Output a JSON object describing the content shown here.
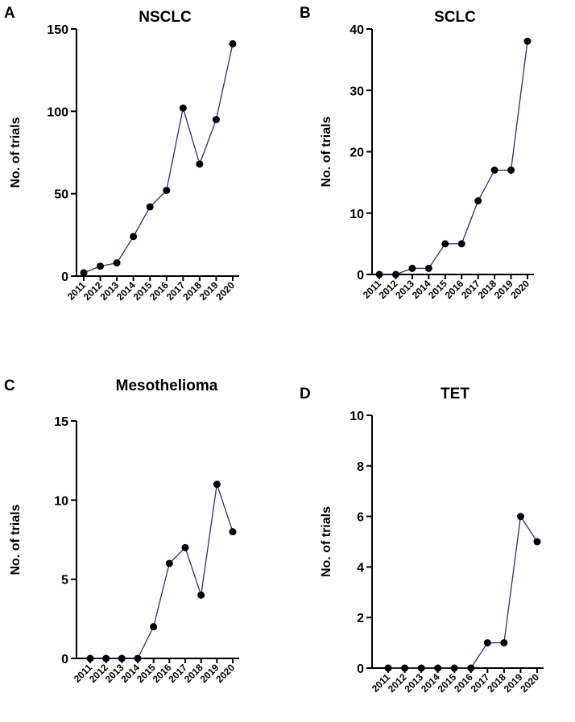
{
  "chart_data": [
    {
      "panel": "A",
      "type": "line",
      "title": "NSCLC",
      "ylabel": "No. of trials",
      "xlabel": "",
      "categories": [
        "2011",
        "2012",
        "2013",
        "2014",
        "2015",
        "2016",
        "2017",
        "2018",
        "2019",
        "2020"
      ],
      "values": [
        2,
        6,
        8,
        24,
        42,
        52,
        102,
        68,
        95,
        141
      ],
      "ylim": [
        0,
        150
      ],
      "yticks": [
        0,
        50,
        100,
        150
      ],
      "grid": false,
      "line_color": "#2b2a86"
    },
    {
      "panel": "B",
      "type": "line",
      "title": "SCLC",
      "ylabel": "No. of trials",
      "xlabel": "",
      "categories": [
        "2011",
        "2012",
        "2013",
        "2014",
        "2015",
        "2016",
        "2017",
        "2018",
        "2019",
        "2020"
      ],
      "values": [
        0,
        0,
        1,
        1,
        5,
        5,
        12,
        17,
        17,
        38
      ],
      "ylim": [
        0,
        40
      ],
      "yticks": [
        0,
        10,
        20,
        30,
        40
      ],
      "grid": false,
      "line_color": "#2b2a86"
    },
    {
      "panel": "C",
      "type": "line",
      "title": "Mesothelioma",
      "ylabel": "No. of trials",
      "xlabel": "",
      "categories": [
        "2011",
        "2012",
        "2013",
        "2014",
        "2015",
        "2016",
        "2017",
        "2018",
        "2019",
        "2020"
      ],
      "values": [
        0,
        0,
        0,
        0,
        2,
        6,
        7,
        4,
        11,
        8
      ],
      "ylim": [
        0,
        15
      ],
      "yticks": [
        0,
        5,
        10,
        15
      ],
      "grid": false,
      "line_color": "#2b2a86"
    },
    {
      "panel": "D",
      "type": "line",
      "title": "TET",
      "ylabel": "No. of trials",
      "xlabel": "",
      "categories": [
        "2011",
        "2012",
        "2013",
        "2014",
        "2015",
        "2016",
        "2017",
        "2018",
        "2019",
        "2020"
      ],
      "values": [
        0,
        0,
        0,
        0,
        0,
        0,
        1,
        1,
        6,
        5
      ],
      "ylim": [
        0,
        10
      ],
      "yticks": [
        0,
        2,
        4,
        6,
        8,
        10
      ],
      "grid": false,
      "line_color": "#2b2a86"
    }
  ]
}
